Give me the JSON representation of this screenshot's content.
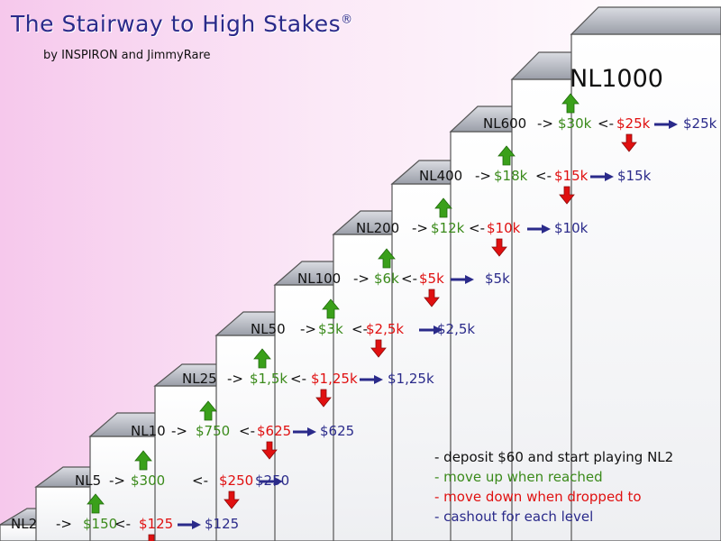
{
  "title": "The Stairway to High Stakes",
  "title_mark": "®",
  "byline": "by INSPIRON and JimmyRare",
  "top_level": "NL1000",
  "levels": [
    {
      "level": "NL2",
      "move_up": "$150",
      "move_down": "$125",
      "cashout": "$125"
    },
    {
      "level": "NL5",
      "move_up": "$300",
      "move_down": "$250",
      "cashout": "$250"
    },
    {
      "level": "NL10",
      "move_up": "$750",
      "move_down": "$625",
      "cashout": "$625"
    },
    {
      "level": "NL25",
      "move_up": "$1,5k",
      "move_down": "$1,25k",
      "cashout": "$1,25k"
    },
    {
      "level": "NL50",
      "move_up": "$3k",
      "move_down": "$2,5k",
      "cashout": "$2,5k"
    },
    {
      "level": "NL100",
      "move_up": "$6k",
      "move_down": "$5k",
      "cashout": "$5k"
    },
    {
      "level": "NL200",
      "move_up": "$12k",
      "move_down": "$10k",
      "cashout": "$10k"
    },
    {
      "level": "NL400",
      "move_up": "$18k",
      "move_down": "$15k",
      "cashout": "$15k"
    },
    {
      "level": "NL600",
      "move_up": "$30k",
      "move_down": "$25k",
      "cashout": "$25k"
    }
  ],
  "symbols": {
    "up_op": "->",
    "down_op": "<-"
  },
  "legend": [
    "- deposit $60 and start playing NL2",
    "- move up when reached",
    "- move down when dropped to",
    "- cashout for each level"
  ],
  "colors": {
    "move_up": "#3a8a1a",
    "move_down": "#e01010",
    "cashout": "#2a2a8a",
    "title": "#2a2a8a"
  }
}
